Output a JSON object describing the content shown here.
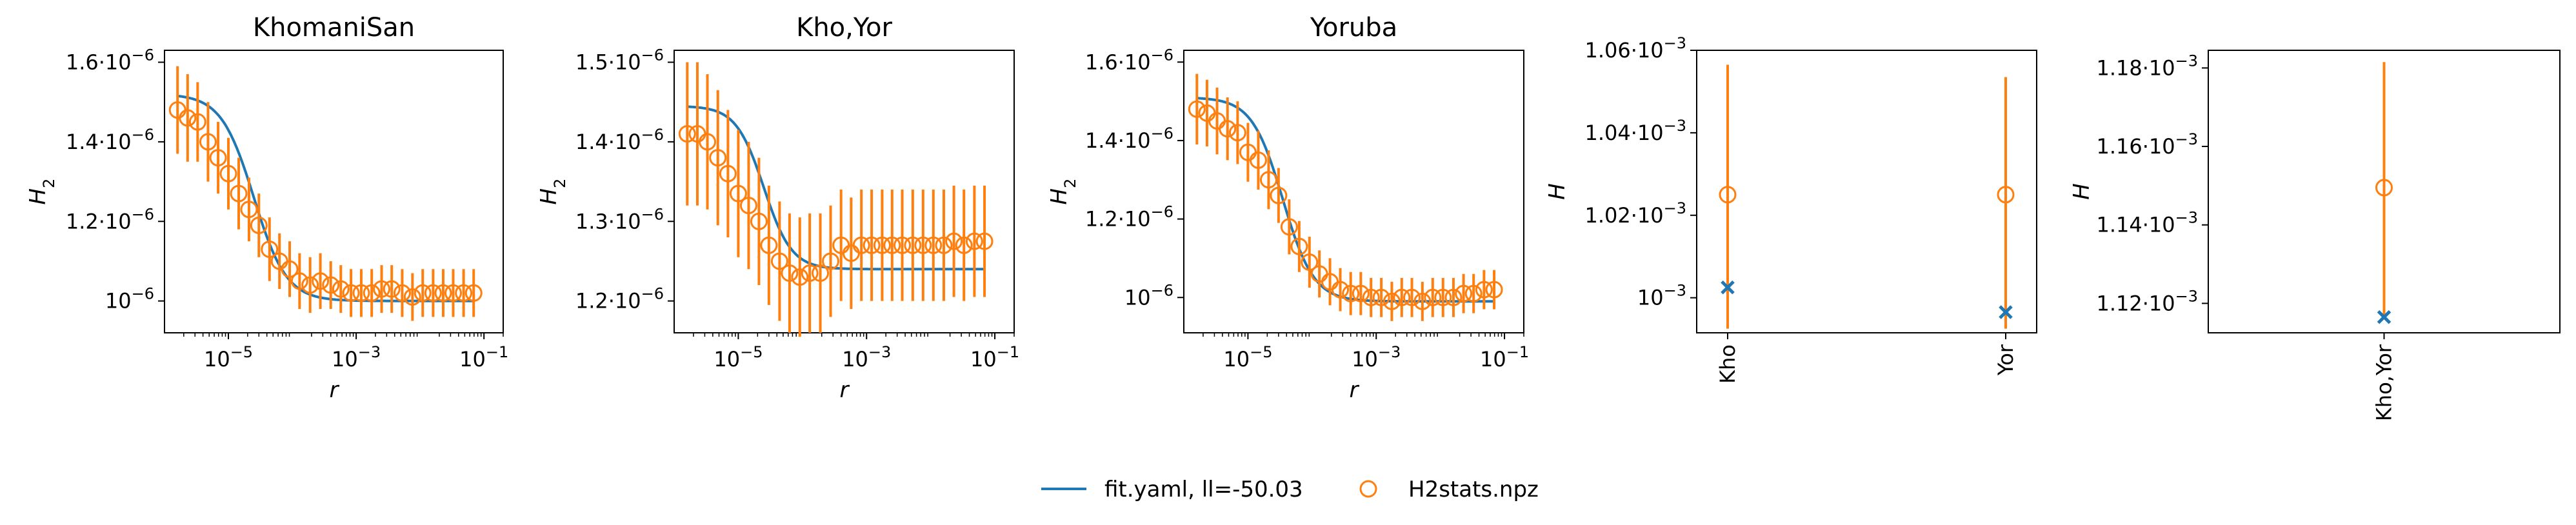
{
  "colors": {
    "fit": "#1f77b4",
    "data": "#ff7f0e",
    "axis": "#000000"
  },
  "legend": {
    "position": "bottom-center",
    "items": [
      {
        "label": "fit.yaml, ll=-50.03",
        "marker": "line",
        "color": "#1f77b4"
      },
      {
        "label": "H2stats.npz",
        "marker": "open-circle",
        "color": "#ff7f0e"
      }
    ]
  },
  "chart_data": [
    {
      "type": "line",
      "title": "KhomaniSan",
      "xlabel": "r",
      "ylabel": "H_2",
      "xscale": "log",
      "xlim": [
        1e-06,
        0.2
      ],
      "ylim": [
        9.2e-07,
        1.63e-06
      ],
      "xticks": [
        {
          "value": 1e-05,
          "base": "10",
          "exp": "−5"
        },
        {
          "value": 0.001,
          "base": "10",
          "exp": "−3"
        },
        {
          "value": 0.1,
          "base": "10",
          "exp": "−1"
        }
      ],
      "yticks": [
        {
          "value": 1e-06,
          "mant": "",
          "base": "10",
          "exp": "−6"
        },
        {
          "value": 1.2e-06,
          "mant": "1.2·",
          "base": "10",
          "exp": "−6"
        },
        {
          "value": 1.4e-06,
          "mant": "1.4·",
          "base": "10",
          "exp": "−6"
        },
        {
          "value": 1.6e-06,
          "mant": "1.6·",
          "base": "10",
          "exp": "−6"
        }
      ],
      "fit": {
        "low": 1e-06,
        "high": 1.52e-06,
        "r0": 2.5e-05,
        "k": 1.7
      },
      "points": {
        "x": [
          1.6e-06,
          2.3e-06,
          3.3e-06,
          4.8e-06,
          6.9e-06,
          1e-05,
          1.45e-05,
          2.1e-05,
          3e-05,
          4.4e-05,
          6.3e-05,
          9.1e-05,
          0.00013,
          0.00019,
          0.000275,
          0.0004,
          0.000575,
          0.00083,
          0.0012,
          0.00175,
          0.0025,
          0.0036,
          0.00525,
          0.0076,
          0.011,
          0.016,
          0.023,
          0.033,
          0.048,
          0.069
        ],
        "y": [
          1.48e-06,
          1.46e-06,
          1.45e-06,
          1.4e-06,
          1.36e-06,
          1.32e-06,
          1.27e-06,
          1.23e-06,
          1.19e-06,
          1.13e-06,
          1.1e-06,
          1.08e-06,
          1.05e-06,
          1.04e-06,
          1.05e-06,
          1.04e-06,
          1.03e-06,
          1.02e-06,
          1.02e-06,
          1.02e-06,
          1.03e-06,
          1.03e-06,
          1.02e-06,
          1.01e-06,
          1.02e-06,
          1.02e-06,
          1.02e-06,
          1.02e-06,
          1.02e-06,
          1.02e-06
        ],
        "err": [
          1.1e-07,
          1.1e-07,
          1e-07,
          1e-07,
          9e-08,
          9e-08,
          9e-08,
          8e-08,
          8e-08,
          8e-08,
          7e-08,
          7e-08,
          7e-08,
          7e-08,
          7e-08,
          6e-08,
          6e-08,
          6e-08,
          6e-08,
          6e-08,
          6e-08,
          6e-08,
          6e-08,
          6e-08,
          6e-08,
          6e-08,
          6e-08,
          6e-08,
          6e-08,
          6e-08
        ]
      }
    },
    {
      "type": "line",
      "title": "Kho,Yor",
      "xlabel": "r",
      "ylabel": "H_2",
      "xscale": "log",
      "xlim": [
        1e-06,
        0.2
      ],
      "ylim": [
        1.16e-06,
        1.515e-06
      ],
      "xticks": [
        {
          "value": 1e-05,
          "base": "10",
          "exp": "−5"
        },
        {
          "value": 0.001,
          "base": "10",
          "exp": "−3"
        },
        {
          "value": 0.1,
          "base": "10",
          "exp": "−1"
        }
      ],
      "yticks": [
        {
          "value": 1.2e-06,
          "mant": "1.2·",
          "base": "10",
          "exp": "−6"
        },
        {
          "value": 1.3e-06,
          "mant": "1.3·",
          "base": "10",
          "exp": "−6"
        },
        {
          "value": 1.4e-06,
          "mant": "1.4·",
          "base": "10",
          "exp": "−6"
        },
        {
          "value": 1.5e-06,
          "mant": "1.5·",
          "base": "10",
          "exp": "−6"
        }
      ],
      "fit": {
        "low": 1.24e-06,
        "high": 1.445e-06,
        "r0": 2.5e-05,
        "k": 2.0
      },
      "points": {
        "x": [
          1.6e-06,
          2.3e-06,
          3.3e-06,
          4.8e-06,
          6.9e-06,
          1e-05,
          1.45e-05,
          2.1e-05,
          3e-05,
          4.4e-05,
          6.3e-05,
          9.1e-05,
          0.00013,
          0.00019,
          0.000275,
          0.0004,
          0.000575,
          0.00083,
          0.0012,
          0.00175,
          0.0025,
          0.0036,
          0.00525,
          0.0076,
          0.011,
          0.016,
          0.023,
          0.033,
          0.048,
          0.069
        ],
        "y": [
          1.41e-06,
          1.41e-06,
          1.4e-06,
          1.38e-06,
          1.36e-06,
          1.335e-06,
          1.32e-06,
          1.3e-06,
          1.27e-06,
          1.25e-06,
          1.235e-06,
          1.23e-06,
          1.235e-06,
          1.235e-06,
          1.25e-06,
          1.27e-06,
          1.26e-06,
          1.27e-06,
          1.27e-06,
          1.27e-06,
          1.27e-06,
          1.27e-06,
          1.27e-06,
          1.27e-06,
          1.27e-06,
          1.27e-06,
          1.275e-06,
          1.27e-06,
          1.275e-06,
          1.275e-06
        ],
        "err": [
          9e-08,
          9e-08,
          8.5e-08,
          8.5e-08,
          8e-08,
          8e-08,
          8e-08,
          8e-08,
          7.5e-08,
          7.5e-08,
          7.5e-08,
          7.5e-08,
          7.5e-08,
          7.5e-08,
          7e-08,
          7e-08,
          7e-08,
          7e-08,
          7e-08,
          7e-08,
          7e-08,
          7e-08,
          7e-08,
          7e-08,
          7e-08,
          7e-08,
          7e-08,
          7e-08,
          7e-08,
          7e-08
        ]
      }
    },
    {
      "type": "line",
      "title": "Yoruba",
      "xlabel": "r",
      "ylabel": "H_2",
      "xscale": "log",
      "xlim": [
        1e-06,
        0.2
      ],
      "ylim": [
        9.1e-07,
        1.63e-06
      ],
      "xticks": [
        {
          "value": 1e-05,
          "base": "10",
          "exp": "−5"
        },
        {
          "value": 0.001,
          "base": "10",
          "exp": "−3"
        },
        {
          "value": 0.1,
          "base": "10",
          "exp": "−1"
        }
      ],
      "yticks": [
        {
          "value": 1e-06,
          "mant": "",
          "base": "10",
          "exp": "−6"
        },
        {
          "value": 1.2e-06,
          "mant": "1.2·",
          "base": "10",
          "exp": "−6"
        },
        {
          "value": 1.4e-06,
          "mant": "1.4·",
          "base": "10",
          "exp": "−6"
        },
        {
          "value": 1.6e-06,
          "mant": "1.6·",
          "base": "10",
          "exp": "−6"
        }
      ],
      "fit": {
        "low": 9.9e-07,
        "high": 1.51e-06,
        "r0": 3.5e-05,
        "k": 1.8
      },
      "points": {
        "x": [
          1.6e-06,
          2.3e-06,
          3.3e-06,
          4.8e-06,
          6.9e-06,
          1e-05,
          1.45e-05,
          2.1e-05,
          3e-05,
          4.4e-05,
          6.3e-05,
          9.1e-05,
          0.00013,
          0.00019,
          0.000275,
          0.0004,
          0.000575,
          0.00083,
          0.0012,
          0.00175,
          0.0025,
          0.0036,
          0.00525,
          0.0076,
          0.011,
          0.016,
          0.023,
          0.033,
          0.048,
          0.069
        ],
        "y": [
          1.48e-06,
          1.47e-06,
          1.45e-06,
          1.43e-06,
          1.42e-06,
          1.37e-06,
          1.35e-06,
          1.3e-06,
          1.26e-06,
          1.18e-06,
          1.13e-06,
          1.09e-06,
          1.06e-06,
          1.04e-06,
          1.02e-06,
          1.01e-06,
          1.01e-06,
          1e-06,
          1e-06,
          9.9e-07,
          1e-06,
          1e-06,
          9.9e-07,
          1e-06,
          1e-06,
          1e-06,
          1.01e-06,
          1.01e-06,
          1.02e-06,
          1.02e-06
        ],
        "err": [
          9e-08,
          8.5e-08,
          8.5e-08,
          8e-08,
          8e-08,
          7.5e-08,
          7.5e-08,
          7.5e-08,
          7e-08,
          7e-08,
          6.5e-08,
          6.5e-08,
          6e-08,
          6e-08,
          5.5e-08,
          5.5e-08,
          5.5e-08,
          5e-08,
          5e-08,
          5e-08,
          5e-08,
          5e-08,
          5e-08,
          5e-08,
          5e-08,
          5e-08,
          5e-08,
          5e-08,
          5e-08,
          5e-08
        ]
      }
    },
    {
      "type": "scatter",
      "title": "",
      "xlabel": "",
      "ylabel": "H",
      "categories": [
        "Kho",
        "Yor"
      ],
      "ylim": [
        0.0009915,
        0.00106
      ],
      "yticks": [
        {
          "value": 0.001,
          "mant": "",
          "base": "10",
          "exp": "−3"
        },
        {
          "value": 0.00102,
          "mant": "1.02·",
          "base": "10",
          "exp": "−3"
        },
        {
          "value": 0.00104,
          "mant": "1.04·",
          "base": "10",
          "exp": "−3"
        },
        {
          "value": 0.00106,
          "mant": "1.06·",
          "base": "10",
          "exp": "−3"
        }
      ],
      "data": {
        "values": [
          0.001025,
          0.001025
        ],
        "err_low": [
          0.0009925,
          0.0009925
        ],
        "err_high": [
          0.0010565,
          0.0010535
        ]
      },
      "fit": {
        "values": [
          0.0010025,
          0.0009965
        ]
      }
    },
    {
      "type": "scatter",
      "title": "",
      "xlabel": "",
      "ylabel": "H",
      "categories": [
        "Kho,Yor"
      ],
      "ylim": [
        0.0011125,
        0.0011845
      ],
      "yticks": [
        {
          "value": 0.00112,
          "mant": "1.12·",
          "base": "10",
          "exp": "−3"
        },
        {
          "value": 0.00114,
          "mant": "1.14·",
          "base": "10",
          "exp": "−3"
        },
        {
          "value": 0.00116,
          "mant": "1.16·",
          "base": "10",
          "exp": "−3"
        },
        {
          "value": 0.00118,
          "mant": "1.18·",
          "base": "10",
          "exp": "−3"
        }
      ],
      "data": {
        "values": [
          0.0011495
        ],
        "err_low": [
          0.0011165
        ],
        "err_high": [
          0.0011815
        ]
      },
      "fit": {
        "values": [
          0.0011165
        ]
      }
    }
  ]
}
